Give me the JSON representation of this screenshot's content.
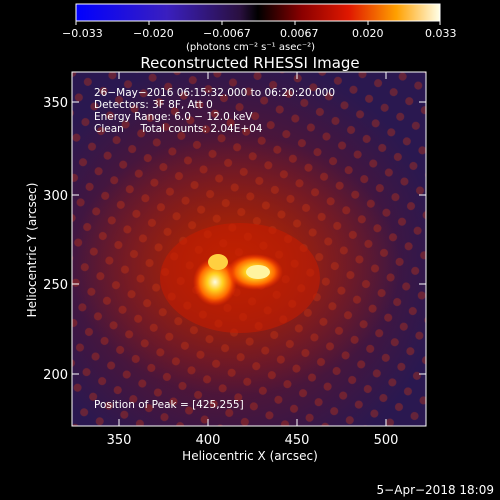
{
  "colorbar": {
    "ticks": [
      "−0.033",
      "−0.020",
      "−0.0067",
      "0.0067",
      "0.020",
      "0.033"
    ],
    "units": "(photons cm⁻² s⁻¹ asec⁻²)"
  },
  "title": "Reconstructed RHESSI Image",
  "annotations": {
    "line1": "26−May−2016 06:15:32.000 to 06:20:20.000",
    "line2": "Detectors: 3F 8F, Att 0",
    "line3": "Energy Range: 6.0 − 12.0 keV",
    "line4": "Clean     Total counts: 2.04E+04",
    "peak": "Position of Peak = [425,255]"
  },
  "x_axis": {
    "label": "Heliocentric X (arcsec)",
    "ticks": [
      "350",
      "400",
      "450",
      "500"
    ]
  },
  "y_axis": {
    "label": "Heliocentric Y (arcsec)",
    "ticks": [
      "200",
      "250",
      "300",
      "350"
    ]
  },
  "footer": {
    "timestamp": "5−Apr−2018 18:09"
  }
}
